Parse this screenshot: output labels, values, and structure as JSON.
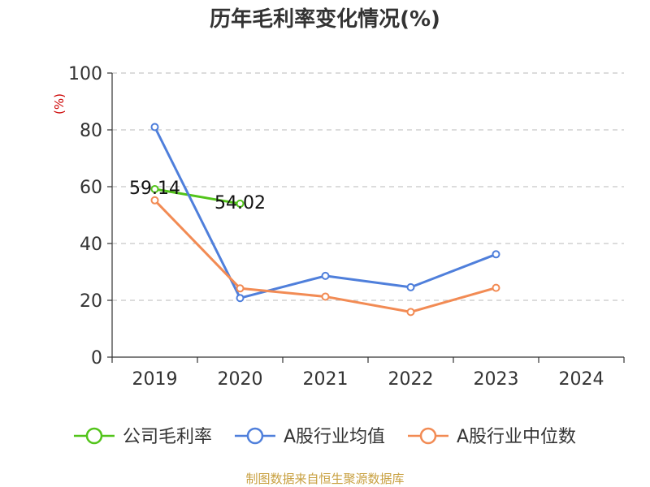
{
  "chart_data": {
    "type": "line",
    "title": "历年毛利率变化情况(%)",
    "ylabel": "(%)",
    "xlabel": "",
    "ylim": [
      0,
      100
    ],
    "yticks": [
      0,
      20,
      40,
      60,
      80,
      100
    ],
    "categories": [
      "2019",
      "2020",
      "2021",
      "2022",
      "2023",
      "2024"
    ],
    "grid": true,
    "legend_position": "bottom",
    "series": [
      {
        "name": "公司毛利率",
        "color": "#52c41a",
        "values": [
          59.14,
          54.02,
          null,
          null,
          null,
          null
        ],
        "data_labels": [
          "59.14",
          "54.02",
          null,
          null,
          null,
          null
        ]
      },
      {
        "name": "A股行业均值",
        "color": "#4f7fdb",
        "values": [
          81,
          20.8,
          28.6,
          24.6,
          36.2,
          null
        ],
        "data_labels": [
          null,
          null,
          null,
          null,
          null,
          null
        ]
      },
      {
        "name": "A股行业中位数",
        "color": "#f28b54",
        "values": [
          55.2,
          24.2,
          21.3,
          15.9,
          24.4,
          null
        ],
        "data_labels": [
          null,
          null,
          null,
          null,
          null,
          null
        ]
      }
    ]
  },
  "source": "制图数据来自恒生聚源数据库"
}
